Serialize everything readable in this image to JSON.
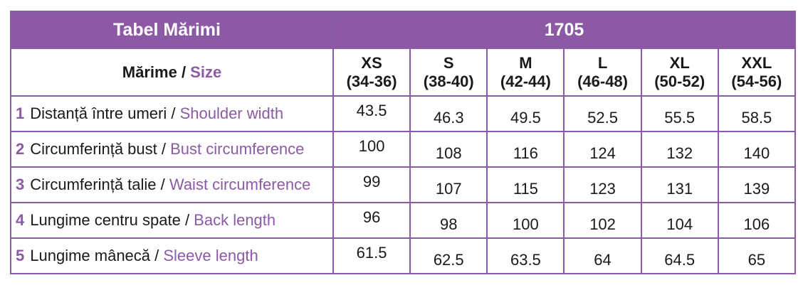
{
  "table": {
    "title": "Tabel Mărimi",
    "code": "1705",
    "size_header": {
      "ro": "Mărime",
      "separator": " / ",
      "en": "Size"
    },
    "sizes": [
      {
        "name": "XS",
        "range": "(34-36)"
      },
      {
        "name": "S",
        "range": "(38-40)"
      },
      {
        "name": "M",
        "range": "(42-44)"
      },
      {
        "name": "L",
        "range": "(46-48)"
      },
      {
        "name": "XL",
        "range": "(50-52)"
      },
      {
        "name": "XXL",
        "range": "(54-56)"
      }
    ],
    "rows": [
      {
        "num": "1",
        "ro": "Distanță între umeri",
        "sep": " / ",
        "en": "Shoulder width",
        "values": [
          "43.5",
          "46.3",
          "49.5",
          "52.5",
          "55.5",
          "58.5"
        ]
      },
      {
        "num": "2",
        "ro": "Circumferință bust",
        "sep": " / ",
        "en": "Bust circumference",
        "values": [
          "100",
          "108",
          "116",
          "124",
          "132",
          "140"
        ]
      },
      {
        "num": "3",
        "ro": "Circumferință talie",
        "sep": " / ",
        "en": "Waist circumference",
        "values": [
          "99",
          "107",
          "115",
          "123",
          "131",
          "139"
        ]
      },
      {
        "num": "4",
        "ro": "Lungime centru spate",
        "sep": " / ",
        "en": "Back length",
        "values": [
          "96",
          "98",
          "100",
          "102",
          "104",
          "106"
        ]
      },
      {
        "num": "5",
        "ro": "Lungime mânecă",
        "sep": " / ",
        "en": "Sleeve length",
        "values": [
          "61.5",
          "62.5",
          "63.5",
          "64",
          "64.5",
          "65"
        ]
      }
    ]
  },
  "colors": {
    "accent": "#8c5aa5",
    "border": "#8a5aa8",
    "text": "#1a1a1a"
  }
}
